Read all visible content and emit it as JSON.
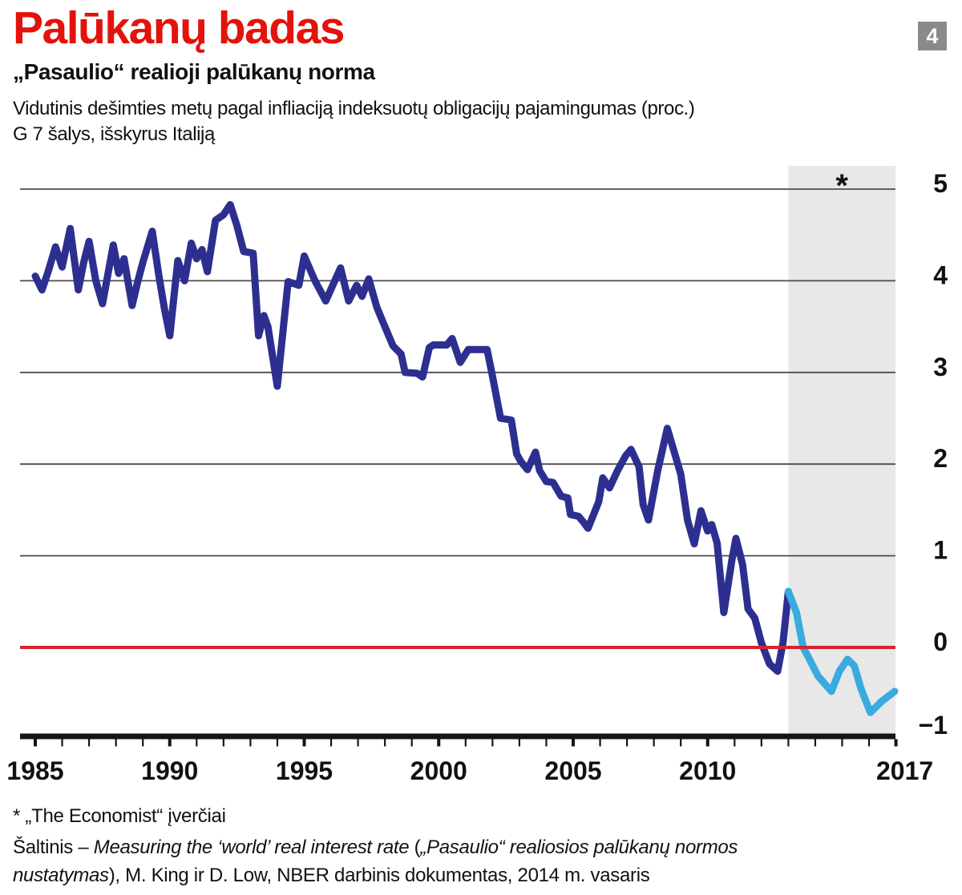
{
  "header": {
    "title": "Palūkanų badas",
    "badge": "4",
    "subtitle": "„Pasaulio“ realioji palūkanų norma",
    "description_line1": "Vidutinis dešimties metų pagal infliaciją indeksuotų obligacijų pajamingumas (proc.)",
    "description_line2": "G 7 šalys, išskyrus Italiją"
  },
  "chart_data": {
    "type": "line",
    "title": "„Pasaulio“ realioji palūkanų norma",
    "xlabel": "",
    "ylabel": "",
    "xlim": [
      1984.4,
      2017
    ],
    "ylim": [
      -1,
      5.3
    ],
    "grid": true,
    "x_ticks": [
      1985,
      1990,
      1995,
      2000,
      2005,
      2010,
      2017
    ],
    "x_tick_labels": [
      "1985",
      "1990",
      "1995",
      "2000",
      "2005",
      "2010",
      "2017"
    ],
    "y_ticks": [
      5,
      4,
      3,
      2,
      1,
      0,
      -1
    ],
    "y_tick_labels": [
      "5",
      "4",
      "3",
      "2",
      "1",
      "0",
      "−1"
    ],
    "zero_line_color": "#d6232e",
    "gridline_color": "#4c4c4c",
    "axis_color": "#151515",
    "forecast_region": {
      "start": 2013,
      "end": 2017,
      "label": "*",
      "fill": "#e8e8e8"
    },
    "series": [
      {
        "name": "historical",
        "color": "#2d2f90",
        "x": [
          1985,
          1985.25,
          1985.5,
          1985.75,
          1986,
          1986.3,
          1986.6,
          1986.8,
          1987,
          1987.25,
          1987.5,
          1987.9,
          1988.1,
          1988.3,
          1988.6,
          1988.8,
          1989,
          1989.35,
          1989.6,
          1989.8,
          1990,
          1990.3,
          1990.55,
          1990.8,
          1991,
          1991.2,
          1991.4,
          1991.7,
          1992,
          1992.25,
          1992.5,
          1992.75,
          1993.1,
          1993.3,
          1993.5,
          1993.65,
          1994,
          1994.4,
          1994.8,
          1995,
          1995.4,
          1995.8,
          1996.35,
          1996.65,
          1996.95,
          1997.15,
          1997.4,
          1997.7,
          1998,
          1998.3,
          1998.6,
          1998.75,
          1999.2,
          1999.4,
          1999.65,
          1999.8,
          2000.3,
          2000.5,
          2000.8,
          2001.1,
          2001.8,
          2002,
          2002.3,
          2002.7,
          2002.9,
          2003.05,
          2003.3,
          2003.6,
          2003.75,
          2004,
          2004.25,
          2004.55,
          2004.8,
          2004.9,
          2005.2,
          2005.4,
          2005.55,
          2005.95,
          2006.1,
          2006.35,
          2006.65,
          2006.95,
          2007.15,
          2007.45,
          2007.6,
          2007.8,
          2008.15,
          2008.5,
          2009,
          2009.25,
          2009.5,
          2009.75,
          2010,
          2010.15,
          2010.35,
          2010.6,
          2010.9,
          2011.05,
          2011.3,
          2011.5,
          2011.75,
          2012,
          2012.3,
          2012.6,
          2012.8,
          2013
        ],
        "values": [
          4.05,
          3.9,
          4.12,
          4.37,
          4.15,
          4.57,
          3.9,
          4.2,
          4.43,
          4,
          3.75,
          4.39,
          4.08,
          4.24,
          3.73,
          3.98,
          4.2,
          4.54,
          4.05,
          3.7,
          3.4,
          4.22,
          4,
          4.41,
          4.24,
          4.34,
          4.1,
          4.66,
          4.72,
          4.83,
          4.6,
          4.32,
          4.3,
          3.4,
          3.62,
          3.5,
          2.85,
          3.99,
          3.95,
          4.27,
          4,
          3.78,
          4.14,
          3.78,
          3.95,
          3.83,
          4.02,
          3.71,
          3.5,
          3.29,
          3.2,
          3,
          2.99,
          2.95,
          3.27,
          3.3,
          3.3,
          3.37,
          3.11,
          3.25,
          3.25,
          2.96,
          2.5,
          2.48,
          2.11,
          2.03,
          1.94,
          2.13,
          1.93,
          1.81,
          1.8,
          1.65,
          1.63,
          1.45,
          1.43,
          1.36,
          1.3,
          1.59,
          1.85,
          1.74,
          1.93,
          2.09,
          2.16,
          1.97,
          1.56,
          1.39,
          1.94,
          2.39,
          1.89,
          1.39,
          1.13,
          1.49,
          1.27,
          1.34,
          1.14,
          0.38,
          0.95,
          1.19,
          0.9,
          0.42,
          0.32,
          0.05,
          -0.18,
          -0.26,
          0.05,
          0.61
        ]
      },
      {
        "name": "economist-estimates",
        "color": "#39abdf",
        "x": [
          2013,
          2013.3,
          2013.55,
          2013.75,
          2014.1,
          2014.6,
          2014.9,
          2015.2,
          2015.45,
          2015.7,
          2016.05,
          2016.5,
          2016.95
        ],
        "values": [
          0.61,
          0.38,
          0,
          -0.11,
          -0.31,
          -0.48,
          -0.26,
          -0.13,
          -0.2,
          -0.45,
          -0.71,
          -0.58,
          -0.48
        ]
      }
    ]
  },
  "footer": {
    "footnote": "* „The Economist“ įverčiai",
    "source_segments": [
      {
        "text": "Šaltinis – ",
        "italic": false
      },
      {
        "text": "Measuring the ‘world’ real interest rate",
        "italic": true
      },
      {
        "text": " (",
        "italic": false
      },
      {
        "text": "„Pasaulio“ realiosios palūkanų normos nustatymas",
        "italic": true
      },
      {
        "text": "), M. King ir D. Low, NBER darbinis dokumentas, 2014 m. vasaris",
        "italic": false
      }
    ]
  }
}
